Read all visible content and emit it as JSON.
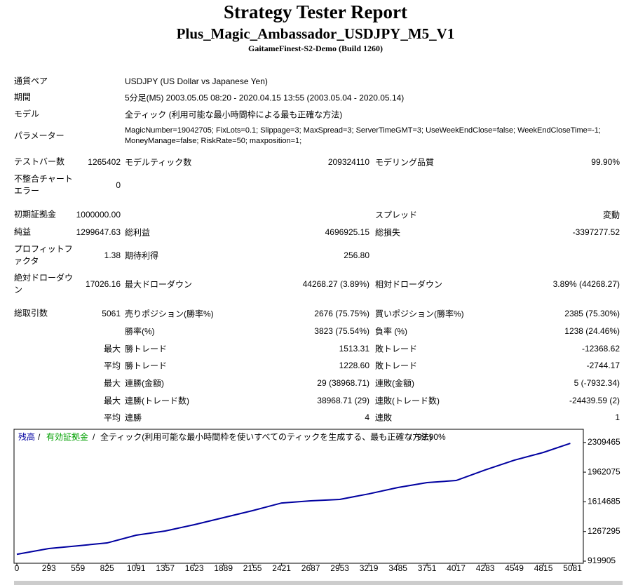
{
  "header": {
    "title": "Strategy Tester Report",
    "subtitle": "Plus_Magic_Ambassador_USDJPY_M5_V1",
    "server": "GaitameFinest-S2-Demo (Build 1260)"
  },
  "info": [
    {
      "label": "通貨ペア",
      "value": "USDJPY (US Dollar vs Japanese Yen)"
    },
    {
      "label": "期間",
      "value": "5分足(M5) 2003.05.05 08:20 - 2020.04.15 13:55 (2003.05.04 - 2020.05.14)"
    },
    {
      "label": "モデル",
      "value": "全ティック (利用可能な最小時間枠による最も正確な方法)"
    },
    {
      "label": "パラメーター",
      "value": "MagicNumber=19042705; FixLots=0.1; Slippage=3; MaxSpread=3; ServerTimeGMT=3; UseWeekEndClose=false; WeekEndCloseTime=-1; MoneyManage=false; RiskRate=50; maxposition=1;"
    }
  ],
  "stats": [
    [
      "テストバー数",
      "1265402",
      "モデルティック数",
      "209324110",
      "モデリング品質",
      "99.90%"
    ],
    [
      "不整合チャートエラー",
      "0",
      null,
      null,
      null,
      null
    ],
    [
      "初期証拠金",
      "1000000.00",
      null,
      null,
      "スプレッド",
      "変動"
    ],
    [
      "純益",
      "1299647.63",
      "総利益",
      "4696925.15",
      "総損失",
      "-3397277.52"
    ],
    [
      "プロフィットファクタ",
      "1.38",
      "期待利得",
      "256.80",
      null,
      null
    ],
    [
      "絶対ドローダウン",
      "17026.16",
      "最大ドローダウン",
      "44268.27 (3.89%)",
      "相対ドローダウン",
      "3.89% (44268.27)"
    ],
    [
      "総取引数",
      "5061",
      "売りポジション(勝率%)",
      "2676 (75.75%)",
      "買いポジション(勝率%)",
      "2385 (75.30%)"
    ],
    [
      null,
      null,
      "勝率(%)",
      "3823 (75.54%)",
      "負率 (%)",
      "1238 (24.46%)"
    ],
    [
      null,
      "最大",
      "勝トレード",
      "1513.31",
      "敗トレード",
      "-12368.62"
    ],
    [
      null,
      "平均",
      "勝トレード",
      "1228.60",
      "敗トレード",
      "-2744.17"
    ],
    [
      null,
      "最大",
      "連勝(金額)",
      "29 (38968.71)",
      "連敗(金額)",
      "5 (-7932.34)"
    ],
    [
      null,
      "最大",
      "連勝(トレード数)",
      "38968.71 (29)",
      "連敗(トレード数)",
      "-24439.59 (2)"
    ],
    [
      null,
      "平均",
      "連勝",
      "4",
      "連敗",
      "1"
    ]
  ],
  "chart_data": {
    "type": "line",
    "series": [
      {
        "name": "残高",
        "color": "#0000a0",
        "values": [
          1000000,
          1068000,
          1100000,
          1133000,
          1224000,
          1273000,
          1347000,
          1429000,
          1511000,
          1601000,
          1626000,
          1643000,
          1708000,
          1782000,
          1840000,
          1864000,
          1988000,
          2102000,
          2193000,
          2299647
        ]
      }
    ],
    "x": [
      0,
      293,
      559,
      825,
      1091,
      1357,
      1623,
      1889,
      2155,
      2421,
      2687,
      2953,
      3219,
      3485,
      3751,
      4017,
      4283,
      4549,
      4815,
      5061
    ],
    "equity_label": "有効証拠金",
    "equity_color": "#00a000",
    "separator": "/",
    "caption": "全ティック(利用可能な最小時間枠を使いすべてのティックを生成する、最も正確な方法)",
    "quality": "99.90%",
    "xlim": [
      0,
      5180
    ],
    "xticks": [
      0,
      293,
      559,
      825,
      1091,
      1357,
      1623,
      1889,
      2155,
      2421,
      2687,
      2953,
      3219,
      3485,
      3751,
      4017,
      4283,
      4549,
      4815,
      5081
    ],
    "ylim": [
      919905,
      2464000
    ],
    "yticks": [
      919905,
      1267295,
      1614685,
      1962075,
      2309465
    ]
  }
}
